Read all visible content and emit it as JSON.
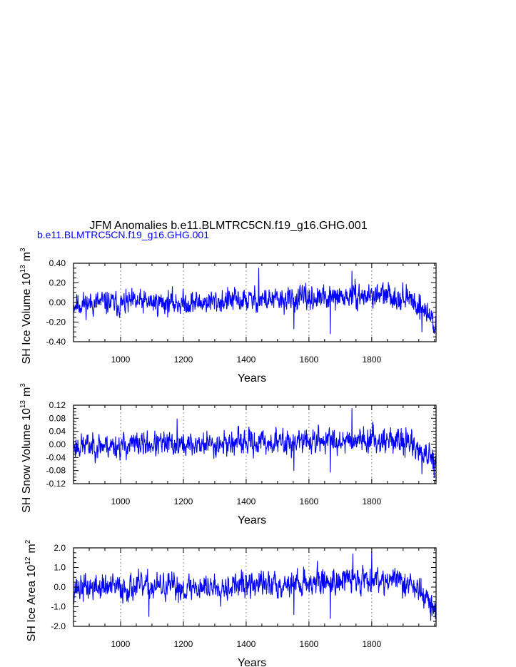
{
  "title": "JFM Anomalies b.e11.BLMTRC5CN.f19_g16.GHG.001",
  "legend_label": "b.e11.BLMTRC5CN.f19_g16.GHG.001",
  "colors": {
    "series": "#0000ff",
    "axis": "#000000",
    "refline": "#888888"
  },
  "chart_data": [
    {
      "type": "line",
      "ylabel_main": "SH Ice Volume 10",
      "ylabel_exp": "13",
      "ylabel_unit": "m",
      "ylabel_unit_exp": "3",
      "xlabel": "Years",
      "xlim": [
        850,
        2005
      ],
      "ylim": [
        -0.4,
        0.4
      ],
      "yticks": [
        -0.4,
        -0.2,
        0.0,
        0.2,
        0.4
      ],
      "ytick_labels": [
        "-0.40",
        "-0.20",
        "0.00",
        "0.20",
        "0.40"
      ],
      "xticks": [
        1000,
        1200,
        1400,
        1600,
        1800
      ],
      "xtick_labels": [
        "1000",
        "1200",
        "1400",
        "1600",
        "1800"
      ],
      "grid_x": [
        1000,
        1200,
        1400,
        1600,
        1800
      ],
      "series": [
        {
          "x_start": 850,
          "x_end": 2005,
          "anchors_x": [
            850,
            900,
            950,
            1000,
            1050,
            1100,
            1150,
            1200,
            1250,
            1300,
            1350,
            1400,
            1450,
            1500,
            1550,
            1600,
            1650,
            1700,
            1750,
            1800,
            1850,
            1900,
            1930,
            1950,
            1970,
            1990,
            2005
          ],
          "anchors_y": [
            -0.02,
            -0.01,
            0.0,
            -0.02,
            0.0,
            0.0,
            0.0,
            -0.01,
            0.0,
            0.01,
            0.02,
            0.02,
            0.03,
            0.02,
            0.03,
            0.04,
            0.04,
            0.05,
            0.06,
            0.07,
            0.07,
            0.05,
            0.02,
            -0.03,
            -0.08,
            -0.16,
            -0.24
          ],
          "amplitude": 0.08,
          "peaks": [
            [
              1440,
              0.35
            ],
            [
              1737,
              0.32
            ],
            [
              1668,
              -0.32
            ],
            [
              1552,
              -0.27
            ],
            [
              1960,
              -0.3
            ],
            [
              1995,
              -0.27
            ]
          ],
          "seed": 11
        }
      ]
    },
    {
      "type": "line",
      "ylabel_main": "SH Snow Volume 10",
      "ylabel_exp": "13",
      "ylabel_unit": "m",
      "ylabel_unit_exp": "3",
      "xlabel": "Years",
      "xlim": [
        850,
        2005
      ],
      "ylim": [
        -0.12,
        0.12
      ],
      "yticks": [
        -0.12,
        -0.08,
        -0.04,
        0.0,
        0.04,
        0.08,
        0.12
      ],
      "ytick_labels": [
        "-0.12",
        "-0.08",
        "-0.04",
        "0.00",
        "0.04",
        "0.08",
        "0.12"
      ],
      "xticks": [
        1000,
        1200,
        1400,
        1600,
        1800
      ],
      "xtick_labels": [
        "1000",
        "1200",
        "1400",
        "1600",
        "1800"
      ],
      "grid_x": [
        1000,
        1200,
        1400,
        1600,
        1800
      ],
      "series": [
        {
          "x_start": 850,
          "x_end": 2005,
          "anchors_x": [
            850,
            900,
            950,
            1000,
            1050,
            1100,
            1150,
            1200,
            1250,
            1300,
            1350,
            1400,
            1450,
            1500,
            1550,
            1600,
            1650,
            1700,
            1750,
            1800,
            1850,
            1900,
            1930,
            1950,
            1970,
            1990,
            2005
          ],
          "anchors_y": [
            -0.005,
            -0.004,
            -0.002,
            -0.005,
            0.0,
            0.0,
            0.0,
            -0.002,
            0.0,
            0.002,
            0.004,
            0.005,
            0.006,
            0.006,
            0.008,
            0.01,
            0.012,
            0.014,
            0.016,
            0.016,
            0.014,
            0.01,
            0.0,
            -0.015,
            -0.03,
            -0.05,
            -0.07
          ],
          "amplitude": 0.025,
          "peaks": [
            [
              1737,
              0.11
            ],
            [
              1668,
              -0.085
            ],
            [
              1552,
              -0.08
            ],
            [
              1960,
              -0.09
            ],
            [
              1180,
              0.078
            ],
            [
              1995,
              -0.075
            ]
          ],
          "seed": 23
        }
      ]
    },
    {
      "type": "line",
      "ylabel_main": "SH Ice Area 10",
      "ylabel_exp": "12",
      "ylabel_unit": "m",
      "ylabel_unit_exp": "2",
      "xlabel": "Years",
      "xlim": [
        850,
        2005
      ],
      "ylim": [
        -2.0,
        2.0
      ],
      "yticks": [
        -2.0,
        -1.0,
        0.0,
        1.0,
        2.0
      ],
      "ytick_labels": [
        "-2.0",
        "-1.0",
        "0.0",
        "1.0",
        "2.0"
      ],
      "xticks": [
        1000,
        1200,
        1400,
        1600,
        1800
      ],
      "xtick_labels": [
        "1000",
        "1200",
        "1400",
        "1600",
        "1800"
      ],
      "grid_x": [
        1000,
        1200,
        1400,
        1600,
        1800
      ],
      "series": [
        {
          "x_start": 850,
          "x_end": 2005,
          "anchors_x": [
            850,
            900,
            950,
            1000,
            1050,
            1100,
            1150,
            1200,
            1250,
            1300,
            1350,
            1400,
            1450,
            1500,
            1550,
            1600,
            1650,
            1700,
            1750,
            1800,
            1850,
            1900,
            1930,
            1950,
            1970,
            1990,
            2005
          ],
          "anchors_y": [
            -0.05,
            -0.03,
            0.0,
            -0.05,
            0.0,
            0.0,
            0.0,
            -0.03,
            0.0,
            0.05,
            0.1,
            0.1,
            0.15,
            0.15,
            0.2,
            0.25,
            0.3,
            0.35,
            0.4,
            0.45,
            0.4,
            0.3,
            0.1,
            -0.2,
            -0.5,
            -0.9,
            -1.3
          ],
          "amplitude": 0.45,
          "peaks": [
            [
              1740,
              1.7
            ],
            [
              1800,
              1.8
            ],
            [
              1668,
              -1.6
            ],
            [
              1552,
              -1.4
            ],
            [
              1988,
              -1.7
            ],
            [
              1090,
              -1.5
            ]
          ],
          "seed": 37
        }
      ]
    }
  ]
}
